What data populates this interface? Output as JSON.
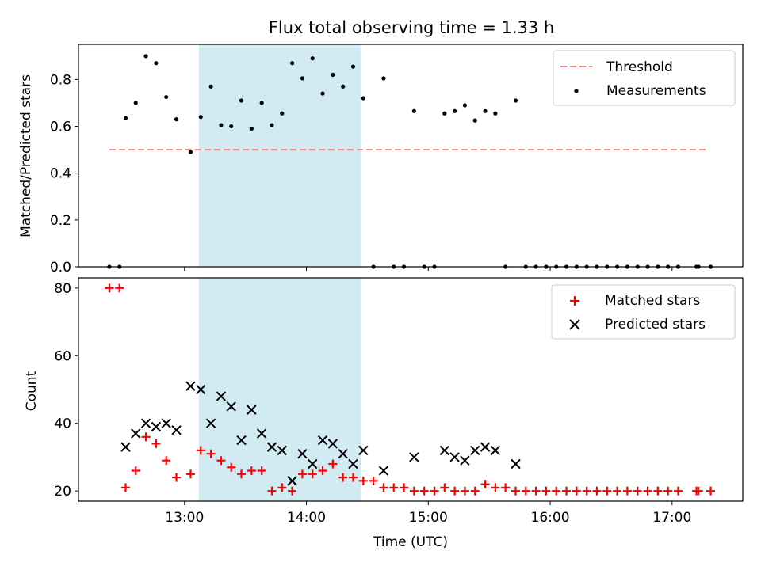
{
  "chart_data": [
    {
      "type": "scatter",
      "title": "Flux total observing time = 1.33 h",
      "xlabel": "",
      "ylabel": "Matched/Predicted stars",
      "ylim": [
        0,
        0.95
      ],
      "yticks": [
        0.0,
        0.2,
        0.4,
        0.6,
        0.8
      ],
      "ytick_labels": [
        "0.0",
        "0.2",
        "0.4",
        "0.6",
        "0.8"
      ],
      "xlim_hours": [
        12.13,
        17.58
      ],
      "highlight_span": {
        "start": "13:07",
        "end": "14:27",
        "color": "#add8e6"
      },
      "legend": {
        "placement": "upper right",
        "entries": [
          "Threshold",
          "Measurements"
        ]
      },
      "threshold": {
        "name": "Threshold",
        "value": 0.5,
        "x_start": "12:23",
        "x_end": "17:18",
        "color": "#ff7f7f",
        "style": "dashed"
      },
      "series": [
        {
          "name": "Measurements",
          "color": "#000000",
          "points": [
            [
              "12:23",
              0.0
            ],
            [
              "12:28",
              0.0
            ],
            [
              "12:31",
              0.635
            ],
            [
              "12:36",
              0.7
            ],
            [
              "12:41",
              0.9
            ],
            [
              "12:46",
              0.87
            ],
            [
              "12:51",
              0.725
            ],
            [
              "12:56",
              0.63
            ],
            [
              "13:03",
              0.49
            ],
            [
              "13:08",
              0.64
            ],
            [
              "13:13",
              0.77
            ],
            [
              "13:18",
              0.605
            ],
            [
              "13:23",
              0.6
            ],
            [
              "13:28",
              0.71
            ],
            [
              "13:33",
              0.59
            ],
            [
              "13:38",
              0.7
            ],
            [
              "13:43",
              0.605
            ],
            [
              "13:48",
              0.655
            ],
            [
              "13:53",
              0.87
            ],
            [
              "13:58",
              0.805
            ],
            [
              "14:03",
              0.89
            ],
            [
              "14:08",
              0.74
            ],
            [
              "14:13",
              0.82
            ],
            [
              "14:18",
              0.77
            ],
            [
              "14:23",
              0.855
            ],
            [
              "14:28",
              0.72
            ],
            [
              "14:33",
              0.0
            ],
            [
              "14:38",
              0.805
            ],
            [
              "14:43",
              0.0
            ],
            [
              "14:48",
              0.0
            ],
            [
              "14:53",
              0.665
            ],
            [
              "14:58",
              0.0
            ],
            [
              "15:03",
              0.0
            ],
            [
              "15:08",
              0.655
            ],
            [
              "15:13",
              0.665
            ],
            [
              "15:18",
              0.69
            ],
            [
              "15:23",
              0.625
            ],
            [
              "15:28",
              0.665
            ],
            [
              "15:33",
              0.655
            ],
            [
              "15:38",
              0.0
            ],
            [
              "15:43",
              0.71
            ],
            [
              "15:48",
              0.0
            ],
            [
              "15:53",
              0.0
            ],
            [
              "15:58",
              0.0
            ],
            [
              "16:03",
              0.0
            ],
            [
              "16:08",
              0.0
            ],
            [
              "16:13",
              0.0
            ],
            [
              "16:18",
              0.0
            ],
            [
              "16:23",
              0.0
            ],
            [
              "16:28",
              0.0
            ],
            [
              "16:33",
              0.0
            ],
            [
              "16:38",
              0.0
            ],
            [
              "16:43",
              0.0
            ],
            [
              "16:48",
              0.0
            ],
            [
              "16:53",
              0.0
            ],
            [
              "16:58",
              0.0
            ],
            [
              "17:03",
              0.0
            ],
            [
              "17:12",
              0.0
            ],
            [
              "17:13",
              0.0
            ],
            [
              "17:19",
              0.0
            ]
          ]
        }
      ]
    },
    {
      "type": "scatter",
      "title": "",
      "xlabel": "Time (UTC)",
      "ylabel": "Count",
      "ylim": [
        17,
        83
      ],
      "yticks": [
        20,
        40,
        60,
        80
      ],
      "ytick_labels": [
        "20",
        "40",
        "60",
        "80"
      ],
      "xlim_hours": [
        12.13,
        17.58
      ],
      "xticks": [
        "13:00",
        "14:00",
        "15:00",
        "16:00",
        "17:00"
      ],
      "highlight_span": {
        "start": "13:07",
        "end": "14:27",
        "color": "#add8e6"
      },
      "legend": {
        "placement": "upper right",
        "entries": [
          "Matched stars",
          "Predicted stars"
        ]
      },
      "series": [
        {
          "name": "Matched stars",
          "marker": "plus",
          "color": "#ff0000",
          "points": [
            [
              "12:23",
              80
            ],
            [
              "12:28",
              80
            ],
            [
              "12:31",
              21
            ],
            [
              "12:36",
              26
            ],
            [
              "12:41",
              36
            ],
            [
              "12:46",
              34
            ],
            [
              "12:51",
              29
            ],
            [
              "12:56",
              24
            ],
            [
              "13:03",
              25
            ],
            [
              "13:08",
              32
            ],
            [
              "13:13",
              31
            ],
            [
              "13:18",
              29
            ],
            [
              "13:23",
              27
            ],
            [
              "13:28",
              25
            ],
            [
              "13:33",
              26
            ],
            [
              "13:38",
              26
            ],
            [
              "13:43",
              20
            ],
            [
              "13:48",
              21
            ],
            [
              "13:53",
              20
            ],
            [
              "13:58",
              25
            ],
            [
              "14:03",
              25
            ],
            [
              "14:08",
              26
            ],
            [
              "14:13",
              28
            ],
            [
              "14:18",
              24
            ],
            [
              "14:23",
              24
            ],
            [
              "14:28",
              23
            ],
            [
              "14:33",
              23
            ],
            [
              "14:38",
              21
            ],
            [
              "14:43",
              21
            ],
            [
              "14:48",
              21
            ],
            [
              "14:53",
              20
            ],
            [
              "14:58",
              20
            ],
            [
              "15:03",
              20
            ],
            [
              "15:08",
              21
            ],
            [
              "15:13",
              20
            ],
            [
              "15:18",
              20
            ],
            [
              "15:23",
              20
            ],
            [
              "15:28",
              22
            ],
            [
              "15:33",
              21
            ],
            [
              "15:38",
              21
            ],
            [
              "15:43",
              20
            ],
            [
              "15:48",
              20
            ],
            [
              "15:53",
              20
            ],
            [
              "15:58",
              20
            ],
            [
              "16:03",
              20
            ],
            [
              "16:08",
              20
            ],
            [
              "16:13",
              20
            ],
            [
              "16:18",
              20
            ],
            [
              "16:23",
              20
            ],
            [
              "16:28",
              20
            ],
            [
              "16:33",
              20
            ],
            [
              "16:38",
              20
            ],
            [
              "16:43",
              20
            ],
            [
              "16:48",
              20
            ],
            [
              "16:53",
              20
            ],
            [
              "16:58",
              20
            ],
            [
              "17:03",
              20
            ],
            [
              "17:12",
              20
            ],
            [
              "17:13",
              20
            ],
            [
              "17:19",
              20
            ]
          ]
        },
        {
          "name": "Predicted stars",
          "marker": "x",
          "color": "#000000",
          "points": [
            [
              "12:31",
              33
            ],
            [
              "12:36",
              37
            ],
            [
              "12:41",
              40
            ],
            [
              "12:46",
              39
            ],
            [
              "12:51",
              40
            ],
            [
              "12:56",
              38
            ],
            [
              "13:03",
              51
            ],
            [
              "13:08",
              50
            ],
            [
              "13:13",
              40
            ],
            [
              "13:18",
              48
            ],
            [
              "13:23",
              45
            ],
            [
              "13:28",
              35
            ],
            [
              "13:33",
              44
            ],
            [
              "13:38",
              37
            ],
            [
              "13:43",
              33
            ],
            [
              "13:48",
              32
            ],
            [
              "13:53",
              23
            ],
            [
              "13:58",
              31
            ],
            [
              "14:03",
              28
            ],
            [
              "14:08",
              35
            ],
            [
              "14:13",
              34
            ],
            [
              "14:18",
              31
            ],
            [
              "14:23",
              28
            ],
            [
              "14:28",
              32
            ],
            [
              "14:38",
              26
            ],
            [
              "14:53",
              30
            ],
            [
              "15:08",
              32
            ],
            [
              "15:13",
              30
            ],
            [
              "15:18",
              29
            ],
            [
              "15:23",
              32
            ],
            [
              "15:28",
              33
            ],
            [
              "15:33",
              32
            ],
            [
              "15:43",
              28
            ]
          ]
        }
      ]
    }
  ]
}
